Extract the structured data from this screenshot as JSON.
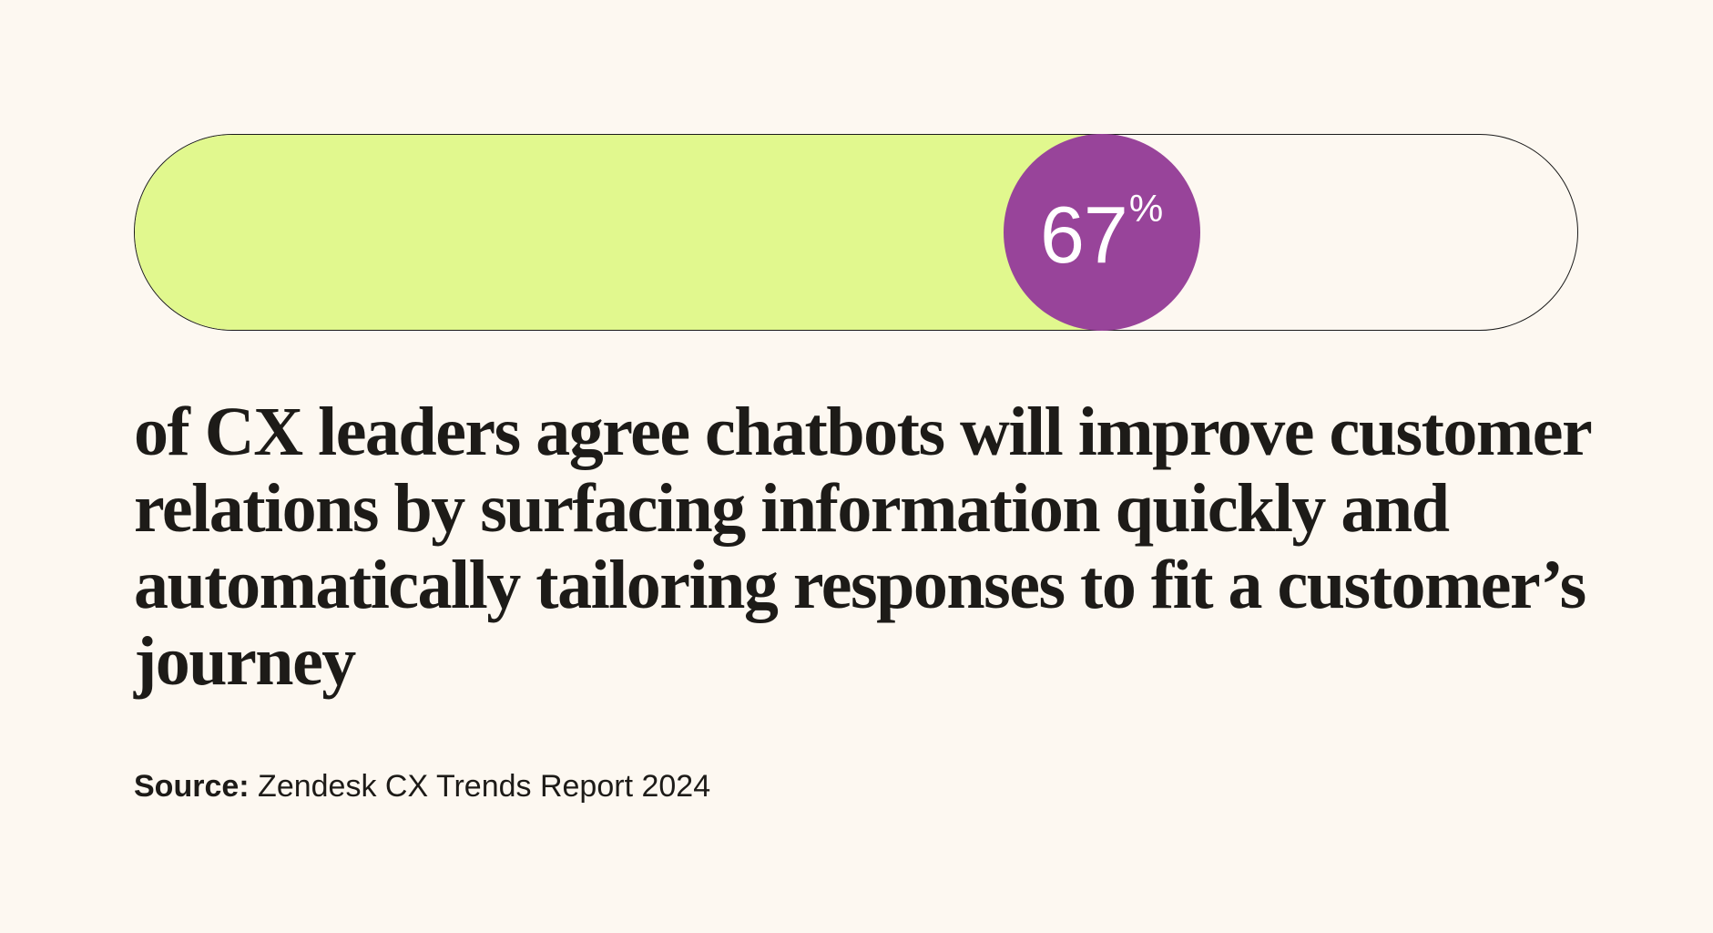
{
  "chart_data": {
    "type": "bar",
    "value": 67,
    "unit": "%",
    "range": [
      0,
      100
    ],
    "colors": {
      "fill": "#e1f88e",
      "badge": "#98449a",
      "track": "#fdf8f1",
      "border": "#1b1b1b"
    }
  },
  "stat": {
    "value": "67",
    "unit": "%"
  },
  "headline": "of CX leaders agree chatbots will improve customer relations by surfacing information quickly and automatically tailoring responses to fit a customer’s journey",
  "source": {
    "label": "Source:",
    "text": "Zendesk CX Trends Report 2024"
  }
}
